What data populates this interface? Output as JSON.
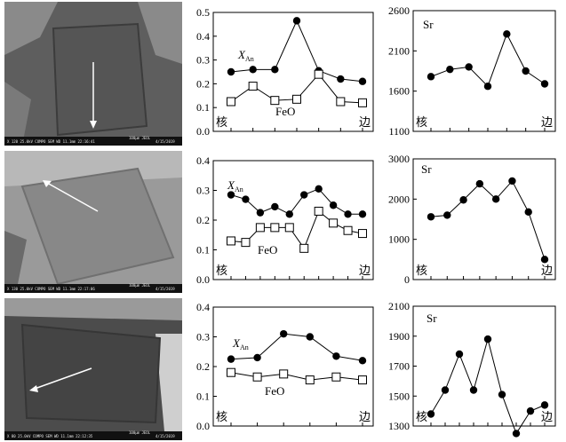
{
  "chart_data": [
    {
      "type": "line",
      "panel": "row1-left",
      "ylim": [
        0,
        0.5
      ],
      "yticks": [
        "0.0",
        "0.1",
        "0.2",
        "0.3",
        "0.4",
        "0.5"
      ],
      "start_label": "核",
      "end_label": "边",
      "series": [
        {
          "name": "XAn",
          "name_main": "X",
          "name_sub": "An",
          "marker": "filled-circle",
          "values": [
            0.25,
            0.26,
            0.26,
            0.465,
            0.255,
            0.22,
            0.21
          ]
        },
        {
          "name": "FeO",
          "marker": "open-square",
          "values": [
            0.125,
            0.19,
            0.13,
            0.135,
            0.24,
            0.125,
            0.12
          ]
        }
      ]
    },
    {
      "type": "line",
      "panel": "row1-right",
      "ylim": [
        1100,
        2600
      ],
      "yticks": [
        "1100",
        "1600",
        "2100",
        "2600"
      ],
      "start_label": "核",
      "end_label": "边",
      "series": [
        {
          "name": "Sr",
          "marker": "filled-circle",
          "values": [
            1780,
            1870,
            1900,
            1660,
            2310,
            1850,
            1690
          ]
        }
      ]
    },
    {
      "type": "line",
      "panel": "row2-left",
      "ylim": [
        0,
        0.4
      ],
      "yticks": [
        "0.0",
        "0.1",
        "0.2",
        "0.3",
        "0.4"
      ],
      "start_label": "核",
      "end_label": "边",
      "series": [
        {
          "name": "XAn",
          "name_main": "X",
          "name_sub": "An",
          "marker": "filled-circle",
          "values": [
            0.285,
            0.27,
            0.225,
            0.245,
            0.22,
            0.285,
            0.305,
            0.25,
            0.22,
            0.22
          ]
        },
        {
          "name": "FeO",
          "marker": "open-square",
          "values": [
            0.13,
            0.125,
            0.175,
            0.175,
            0.175,
            0.105,
            0.23,
            0.19,
            0.165,
            0.155
          ]
        }
      ]
    },
    {
      "type": "line",
      "panel": "row2-right",
      "ylim": [
        0,
        3000
      ],
      "yticks": [
        "0",
        "1000",
        "2000",
        "3000"
      ],
      "start_label": "核",
      "end_label": "边",
      "series": [
        {
          "name": "Sr",
          "marker": "filled-circle",
          "values": [
            1560,
            1600,
            1980,
            2380,
            2000,
            2450,
            1680,
            500
          ]
        }
      ]
    },
    {
      "type": "line",
      "panel": "row3-left",
      "ylim": [
        0,
        0.4
      ],
      "yticks": [
        "0.0",
        "0.1",
        "0.2",
        "0.3",
        "0.4"
      ],
      "start_label": "核",
      "end_label": "边",
      "series": [
        {
          "name": "XAn",
          "name_main": "X",
          "name_sub": "An",
          "marker": "filled-circle",
          "values": [
            0.225,
            0.23,
            0.31,
            0.3,
            0.235,
            0.22
          ]
        },
        {
          "name": "FeO",
          "marker": "open-square",
          "values": [
            0.18,
            0.165,
            0.175,
            0.155,
            0.165,
            0.155
          ]
        }
      ]
    },
    {
      "type": "line",
      "panel": "row3-right",
      "ylim": [
        1300,
        2100
      ],
      "yticks": [
        "1300",
        "1500",
        "1700",
        "1900",
        "2100"
      ],
      "start_label": "核",
      "end_label": "边",
      "series": [
        {
          "name": "Sr",
          "marker": "filled-circle",
          "values": [
            1380,
            1540,
            1780,
            1540,
            1880,
            1510,
            1250,
            1400,
            1440
          ]
        }
      ]
    }
  ],
  "micrographs": [
    {
      "caption": "X 120     25.0kV COMPO   SEM      WD 11.1mm 22:16:41",
      "scale": "100μm JEOL",
      "date": "4/15/2019"
    },
    {
      "caption": "X 130     25.0kV COMPO   SEM      WD 11.1mm 22:17:06",
      "scale": "100μm JEOL",
      "date": "4/15/2019"
    },
    {
      "caption": "X 80      25.0kV COMPO   SEM      WD 11.1mm 22:12:35",
      "scale": "100μm JEOL",
      "date": "4/15/2019"
    }
  ]
}
